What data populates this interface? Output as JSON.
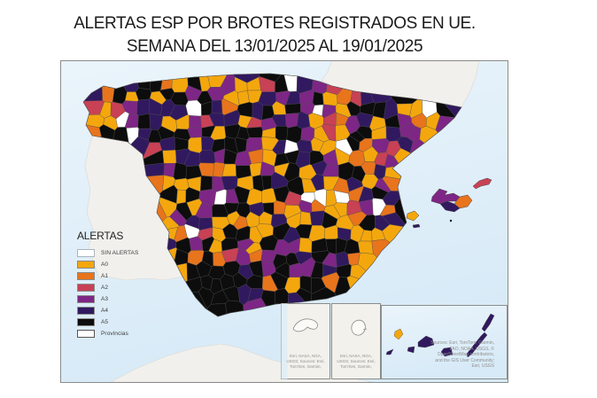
{
  "title": {
    "line1": "ALERTAS ESP POR BROTES REGISTRADOS EN UE.",
    "line2": "SEMANA DEL 13/01/2025 AL 19/01/2025"
  },
  "legend": {
    "title": "ALERTAS",
    "items": [
      {
        "label": "SIN ALERTAS",
        "color": "#FFFFFF",
        "border": "#A9B6BD"
      },
      {
        "label": "A0",
        "color": "#F4A70D",
        "border": "#8A8A8A"
      },
      {
        "label": "A1",
        "color": "#E8741C",
        "border": "#8A8A8A"
      },
      {
        "label": "A2",
        "color": "#C84155",
        "border": "#8A8A8A"
      },
      {
        "label": "A3",
        "color": "#7E2685",
        "border": "#8A8A8A"
      },
      {
        "label": "A4",
        "color": "#31195F",
        "border": "#8A8A8A"
      },
      {
        "label": "A5",
        "color": "#0D0D0D",
        "border": "#8A8A8A"
      },
      {
        "label": "Provincias",
        "color": "#FFFFFF",
        "border": "#555555"
      }
    ]
  },
  "map": {
    "sea_color": "#D7EAF7",
    "sea_color_light": "#EAF4FB",
    "land_color": "#F1F0EC",
    "frame_border_color": "#8C8C8C",
    "region_border_color": "#4A4A4A"
  },
  "insets": {
    "ceuta": {
      "attribution": "Esri, NASA, NGA, USGS; Sources: Esri, TomTom, Garmin,"
    },
    "melilla": {
      "attribution": "Esri, NASA, NGA, USGS; Sources: Esri, TomTom, Garmin,"
    },
    "canary": {
      "attribution": "Sources: Esri, TomTom, Garmin, FAO, NOAA, USGS, © OpenStreetMap contributors, and the GIS User Community; Esri, USGS"
    }
  }
}
